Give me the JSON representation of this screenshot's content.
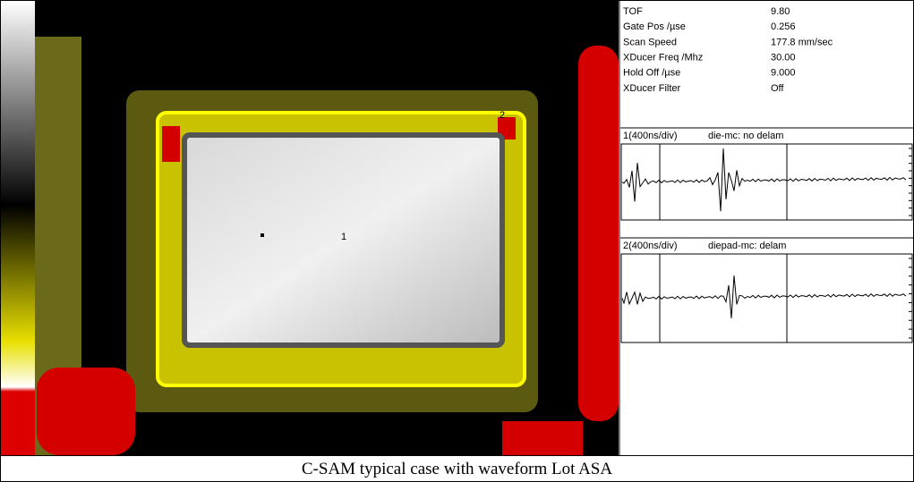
{
  "parameters": [
    {
      "label": "TOF",
      "value": "9.80"
    },
    {
      "label": "Gate Pos /µse",
      "value": "0.256"
    },
    {
      "label": "Scan Speed",
      "value": "177.8 mm/sec"
    },
    {
      "label": "XDucer Freq /Mhz",
      "value": "30.00"
    },
    {
      "label": "Hold Off /µse",
      "value": "9.000"
    },
    {
      "label": "XDucer Filter",
      "value": "Off"
    }
  ],
  "waveforms": [
    {
      "scale": "1(400ns/div)",
      "note": "die-mc: no delam"
    },
    {
      "scale": "2(400ns/div)",
      "note": "diepad-mc:  delam"
    }
  ],
  "image_labels": [
    "1",
    "2"
  ],
  "caption": "C-SAM typical case with waveform  Lot ASA"
}
